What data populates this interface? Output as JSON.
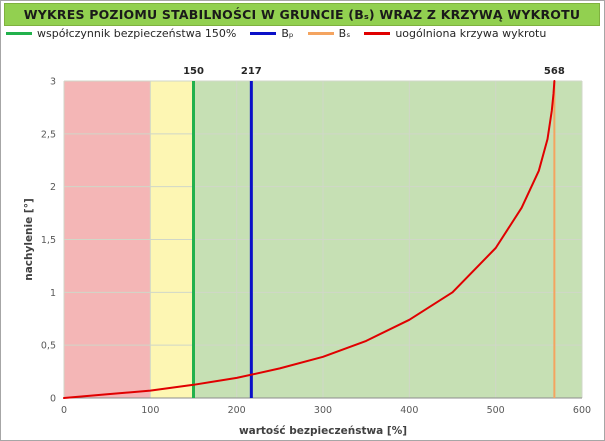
{
  "chart_data": {
    "type": "line",
    "title": "WYKRES POZIOMU STABILNOŚCI W GRUNCIE (Bₛ) WRAZ Z KRZYWĄ WYKROTU",
    "xlabel": "wartość bezpieczeństwa [%]",
    "ylabel": "nachylenie [°]",
    "xlim": [
      0,
      600
    ],
    "ylim": [
      0,
      3
    ],
    "x_ticks": [
      "0",
      "100",
      "200",
      "300",
      "400",
      "500",
      "600"
    ],
    "y_ticks": [
      "0",
      "0,5",
      "1",
      "1,5",
      "2",
      "2,5",
      "3"
    ],
    "grid": true,
    "legend_position": "top",
    "zones": [
      {
        "from": 0,
        "to": 100,
        "color": "#f4b6b6"
      },
      {
        "from": 100,
        "to": 150,
        "color": "#fdf6b3"
      },
      {
        "from": 150,
        "to": 600,
        "color": "#c6e0b4"
      }
    ],
    "series": [
      {
        "name": "współczynnik bezpieczeństwa 150%",
        "kind": "vline",
        "x": 150,
        "label": "150",
        "color": "#22b14c"
      },
      {
        "name": "Bₚ",
        "kind": "vline",
        "x": 217,
        "label": "217",
        "color": "#0a10c8"
      },
      {
        "name": "Bₛ",
        "kind": "vline",
        "x": 568,
        "label": "568",
        "color": "#f4a460"
      },
      {
        "name": "uogólniona krzywa wykrotu",
        "kind": "curve",
        "color": "#e00000",
        "x": [
          0,
          50,
          100,
          150,
          200,
          250,
          300,
          350,
          400,
          450,
          500,
          530,
          550,
          560,
          565,
          567,
          568
        ],
        "y": [
          0,
          0.035,
          0.07,
          0.125,
          0.19,
          0.28,
          0.39,
          0.54,
          0.74,
          1.0,
          1.42,
          1.8,
          2.15,
          2.45,
          2.72,
          2.88,
          3.0
        ]
      }
    ]
  }
}
